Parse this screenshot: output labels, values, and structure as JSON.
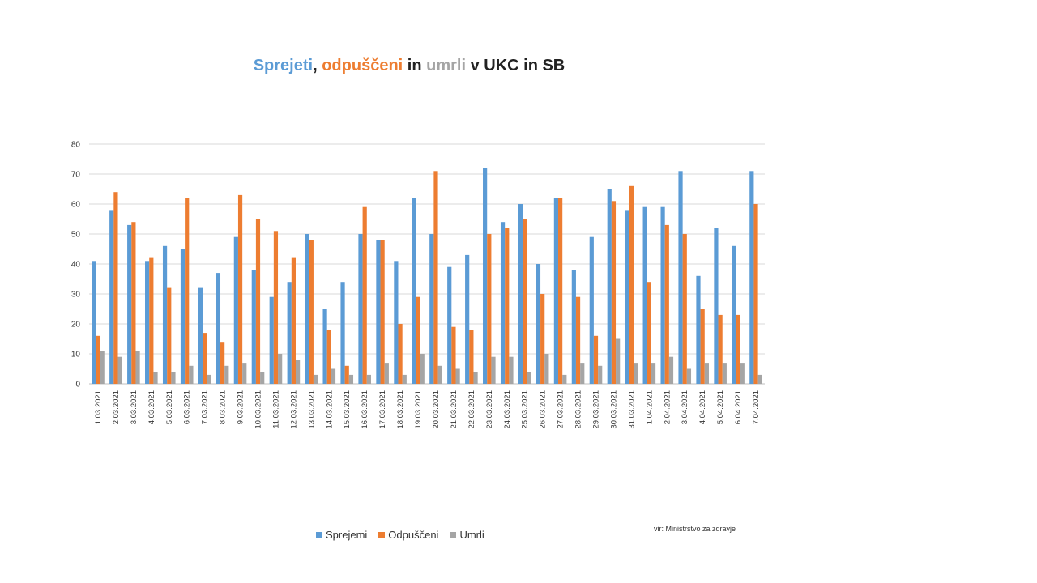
{
  "title_parts": [
    {
      "text": "Sprejeti",
      "color": "#5B9BD5"
    },
    {
      "text": ", ",
      "color": "#222222"
    },
    {
      "text": "odpuščeni",
      "color": "#ED7D31"
    },
    {
      "text": " in ",
      "color": "#222222"
    },
    {
      "text": "umrli",
      "color": "#A5A5A5"
    },
    {
      "text": " v UKC in SB",
      "color": "#222222"
    }
  ],
  "source": "vir: Ministrstvo za zdravje",
  "chart_data": {
    "type": "bar",
    "title": "Sprejeti, odpuščeni in umrli v UKC in SB",
    "xlabel": "",
    "ylabel": "",
    "ylim": [
      0,
      80
    ],
    "yticks": [
      0,
      10,
      20,
      30,
      40,
      50,
      60,
      70,
      80
    ],
    "grid": true,
    "legend_position": "bottom",
    "categories": [
      "1.03.2021",
      "2.03.2021",
      "3.03.2021",
      "4.03.2021",
      "5.03.2021",
      "6.03.2021",
      "7.03.2021",
      "8.03.2021",
      "9.03.2021",
      "10.03.2021",
      "11.03.2021",
      "12.03.2021",
      "13.03.2021",
      "14.03.2021",
      "15.03.2021",
      "16.03.2021",
      "17.03.2021",
      "18.03.2021",
      "19.03.2021",
      "20.03.2021",
      "21.03.2021",
      "22.03.2021",
      "23.03.2021",
      "24.03.2021",
      "25.03.2021",
      "26.03.2021",
      "27.03.2021",
      "28.03.2021",
      "29.03.2021",
      "30.03.2021",
      "31.03.2021",
      "1.04.2021",
      "2.04.2021",
      "3.04.2021",
      "4.04.2021",
      "5.04.2021",
      "6.04.2021",
      "7.04.2021"
    ],
    "series": [
      {
        "name": "Sprejemi",
        "color": "#5B9BD5",
        "values": [
          41,
          58,
          53,
          41,
          46,
          45,
          32,
          37,
          49,
          38,
          29,
          34,
          50,
          25,
          34,
          50,
          48,
          41,
          62,
          50,
          39,
          43,
          72,
          54,
          60,
          40,
          62,
          38,
          49,
          65,
          58,
          59,
          59,
          71,
          36,
          52,
          46,
          71
        ]
      },
      {
        "name": "Odpuščeni",
        "color": "#ED7D31",
        "values": [
          16,
          64,
          54,
          42,
          32,
          62,
          17,
          14,
          63,
          55,
          51,
          42,
          48,
          18,
          6,
          59,
          48,
          20,
          29,
          71,
          19,
          18,
          50,
          52,
          55,
          30,
          62,
          29,
          16,
          61,
          66,
          34,
          53,
          50,
          25,
          23,
          23,
          60
        ]
      },
      {
        "name": "Umrli",
        "color": "#A5A5A5",
        "values": [
          11,
          9,
          11,
          4,
          4,
          6,
          3,
          6,
          7,
          4,
          10,
          8,
          3,
          5,
          3,
          3,
          7,
          3,
          10,
          6,
          5,
          4,
          9,
          9,
          4,
          10,
          3,
          7,
          6,
          15,
          7,
          7,
          9,
          5,
          7,
          7,
          7,
          3
        ]
      }
    ]
  }
}
